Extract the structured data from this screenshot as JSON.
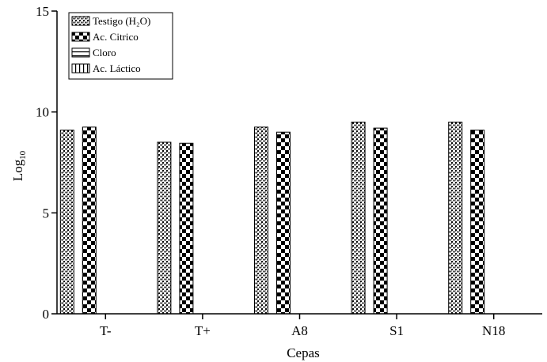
{
  "chart_data": {
    "type": "bar",
    "xlabel": "Cepas",
    "ylabel": "Log",
    "ylabel_sub": "10",
    "ylim": [
      0,
      15
    ],
    "yticks": [
      0,
      5,
      10,
      15
    ],
    "categories": [
      "T-",
      "T+",
      "A8",
      "S1",
      "N18"
    ],
    "legend_position": "top-left",
    "series": [
      {
        "name": "Testigo (H₂O)",
        "pattern": "dotted-grid",
        "values": [
          9.1,
          8.5,
          9.25,
          9.5,
          9.5
        ]
      },
      {
        "name": "Ac. Citrico",
        "pattern": "checker",
        "values": [
          9.25,
          8.45,
          9.0,
          9.2,
          9.1
        ]
      },
      {
        "name": "Cloro",
        "pattern": "horizontal-lines",
        "values": [
          0,
          0,
          0,
          0,
          0
        ]
      },
      {
        "name": "Ac. Láctico",
        "pattern": "vertical-lines",
        "values": [
          0,
          0,
          0,
          0,
          0
        ]
      }
    ]
  }
}
